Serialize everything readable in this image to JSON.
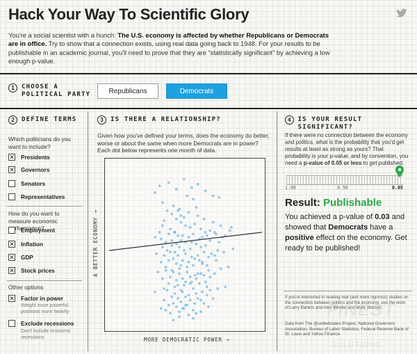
{
  "header": {
    "title": "Hack Your Way To Scientific Glory",
    "intro_1": "You're a social scientist with a hunch: ",
    "intro_bold": "The U.S. economy is affected by whether Republicans or Democrats are in office.",
    "intro_2": " Try to show that a connection exists, using real data going back to 1948. For your results to be publishable in an academic journal, you'll need to prove that they are “statistically significant” by achieving a low enough p-value."
  },
  "step1": {
    "number": "1",
    "label_line1": "Choose a",
    "label_line2": "political party",
    "republicans": "Republicans",
    "democrats": "Democrats",
    "selected": "Democrats"
  },
  "step2": {
    "number": "2",
    "label": "Define terms",
    "q_politicians": "Which politicians do you want to include?",
    "politicians": [
      {
        "label": "Presidents",
        "checked": true
      },
      {
        "label": "Governors",
        "checked": true
      },
      {
        "label": "Senators",
        "checked": false
      },
      {
        "label": "Representatives",
        "checked": false
      }
    ],
    "q_economy": "How do you want to measure economic performance?",
    "measures": [
      {
        "label": "Employment",
        "checked": false
      },
      {
        "label": "Inflation",
        "checked": true
      },
      {
        "label": "GDP",
        "checked": true
      },
      {
        "label": "Stock prices",
        "checked": true
      }
    ],
    "other_label": "Other options",
    "factor_label": "Factor in power",
    "factor_checked": true,
    "factor_sub": "Weight more powerful positions more heavily",
    "recession_label": "Exclude recessions",
    "recession_checked": false,
    "recession_sub": "Don't include economic recessions"
  },
  "step3": {
    "number": "3",
    "label": "Is there a relationship?",
    "description": "Given how you've defined your terms, does the economy do better, worse or about the same when more Democrats are in power? Each dot below represents one month of data.",
    "y_axis": "A BETTER ECONOMY →",
    "x_axis": "MORE DEMOCRATIC POWER →"
  },
  "step4": {
    "number": "4",
    "label": "Is your result significant?",
    "description_1": "If there were no connection between the economy and politics, what is the probability that you'd get results at least as strong as yours? That probability is your p-value, and by convention, you need a ",
    "description_bold": "p-value of 0.05 or less",
    "description_2": " to get published.",
    "slider_ticks": [
      "1.00",
      "0.50",
      "0.05"
    ],
    "p_value_fraction": 0.97,
    "result_prefix": "Result: ",
    "result_word": "Publishable",
    "result_a": "You achieved a p-value of ",
    "p_value": "0.03",
    "result_b": " and showed that ",
    "party": "Democrats",
    "result_c": " have a ",
    "effect": "positive",
    "result_d": " effect on the economy. Get ready to be published!",
    "footnote_1": "If you're interested in reading real (and more rigorous) studies on the connection between politics and the economy, see the work of Larry Bartels and Alan Blinder and Mark Watson.",
    "footnote_2": "Data from The @unitedstates Project, National Governors Association, Bureau of Labor Statistics, Federal Reserve Bank of St. Louis and Yahoo Finance."
  },
  "chart_data": {
    "type": "scatter",
    "title": "",
    "xlabel": "MORE DEMOCRATIC POWER →",
    "ylabel": "A BETTER ECONOMY →",
    "xlim": [
      0,
      1
    ],
    "ylim": [
      0,
      1
    ],
    "fit_line": {
      "x": [
        0.0,
        1.0
      ],
      "y": [
        0.47,
        0.58
      ]
    },
    "points": {
      "x": [
        0.3,
        0.35,
        0.38,
        0.41,
        0.44,
        0.47,
        0.5,
        0.53,
        0.56,
        0.6,
        0.63,
        0.66,
        0.7,
        0.73,
        0.76,
        0.8,
        0.42,
        0.52,
        0.58,
        0.36,
        0.46,
        0.62,
        0.55,
        0.49,
        0.4,
        0.68,
        0.33,
        0.57,
        0.45,
        0.51,
        0.3,
        0.34,
        0.39,
        0.43,
        0.48,
        0.52,
        0.55,
        0.59,
        0.64,
        0.69,
        0.74,
        0.79,
        0.37,
        0.47,
        0.61,
        0.54,
        0.44,
        0.66,
        0.5,
        0.41,
        0.57,
        0.35,
        0.63,
        0.72,
        0.46,
        0.53,
        0.6,
        0.38,
        0.49,
        0.43,
        0.31,
        0.36,
        0.4,
        0.45,
        0.5,
        0.54,
        0.58,
        0.62,
        0.67,
        0.71,
        0.75,
        0.81,
        0.42,
        0.56,
        0.48,
        0.65,
        0.39,
        0.52,
        0.59,
        0.44,
        0.34,
        0.61,
        0.47,
        0.55,
        0.7,
        0.37,
        0.51,
        0.46,
        0.64,
        0.41,
        0.32,
        0.37,
        0.42,
        0.46,
        0.51,
        0.56,
        0.6,
        0.65,
        0.69,
        0.73,
        0.78,
        0.4,
        0.53,
        0.48,
        0.62,
        0.44,
        0.57,
        0.35,
        0.5,
        0.66,
        0.39,
        0.54,
        0.45,
        0.59,
        0.43,
        0.49,
        0.63,
        0.36,
        0.55,
        0.47,
        0.3,
        0.38,
        0.43,
        0.48,
        0.52,
        0.57,
        0.61,
        0.66,
        0.71,
        0.76,
        0.41,
        0.5,
        0.45,
        0.58,
        0.64,
        0.36,
        0.53,
        0.47,
        0.6,
        0.42,
        0.56,
        0.39,
        0.51,
        0.68,
        0.44,
        0.49,
        0.62,
        0.34,
        0.55,
        0.46,
        0.33,
        0.39,
        0.44,
        0.49,
        0.54,
        0.58,
        0.63,
        0.68,
        0.72,
        0.4,
        0.52,
        0.46,
        0.6,
        0.37,
        0.55,
        0.48,
        0.65,
        0.42,
        0.57,
        0.5,
        0.35,
        0.61,
        0.45,
        0.53,
        0.69,
        0.41,
        0.58,
        0.47,
        0.64,
        0.43
      ],
      "y": [
        0.82,
        0.76,
        0.71,
        0.69,
        0.66,
        0.64,
        0.62,
        0.61,
        0.63,
        0.6,
        0.58,
        0.59,
        0.57,
        0.62,
        0.56,
        0.61,
        0.74,
        0.7,
        0.68,
        0.65,
        0.72,
        0.66,
        0.78,
        0.67,
        0.6,
        0.64,
        0.58,
        0.73,
        0.56,
        0.8,
        0.55,
        0.54,
        0.57,
        0.58,
        0.56,
        0.55,
        0.57,
        0.54,
        0.56,
        0.58,
        0.55,
        0.59,
        0.52,
        0.53,
        0.55,
        0.52,
        0.51,
        0.53,
        0.52,
        0.5,
        0.51,
        0.49,
        0.5,
        0.52,
        0.49,
        0.48,
        0.49,
        0.47,
        0.47,
        0.46,
        0.45,
        0.44,
        0.46,
        0.44,
        0.45,
        0.43,
        0.44,
        0.46,
        0.45,
        0.47,
        0.46,
        0.48,
        0.42,
        0.42,
        0.41,
        0.43,
        0.41,
        0.4,
        0.41,
        0.39,
        0.4,
        0.4,
        0.38,
        0.38,
        0.41,
        0.37,
        0.37,
        0.36,
        0.38,
        0.35,
        0.34,
        0.35,
        0.34,
        0.33,
        0.34,
        0.32,
        0.33,
        0.35,
        0.33,
        0.36,
        0.37,
        0.31,
        0.31,
        0.3,
        0.32,
        0.29,
        0.3,
        0.3,
        0.28,
        0.31,
        0.27,
        0.28,
        0.26,
        0.27,
        0.25,
        0.26,
        0.28,
        0.24,
        0.24,
        0.23,
        0.22,
        0.23,
        0.21,
        0.22,
        0.2,
        0.21,
        0.22,
        0.23,
        0.24,
        0.25,
        0.19,
        0.19,
        0.18,
        0.18,
        0.2,
        0.17,
        0.17,
        0.16,
        0.17,
        0.15,
        0.15,
        0.14,
        0.14,
        0.18,
        0.13,
        0.12,
        0.15,
        0.12,
        0.11,
        0.1,
        0.86,
        0.88,
        0.84,
        0.9,
        0.85,
        0.87,
        0.83,
        0.8,
        0.79,
        0.09,
        0.08,
        0.07,
        0.1,
        0.11,
        0.06,
        0.12,
        0.13,
        0.05,
        0.09,
        0.14,
        0.62,
        0.39,
        0.71,
        0.27,
        0.44,
        0.53,
        0.33,
        0.68,
        0.25,
        0.58
      ]
    }
  }
}
